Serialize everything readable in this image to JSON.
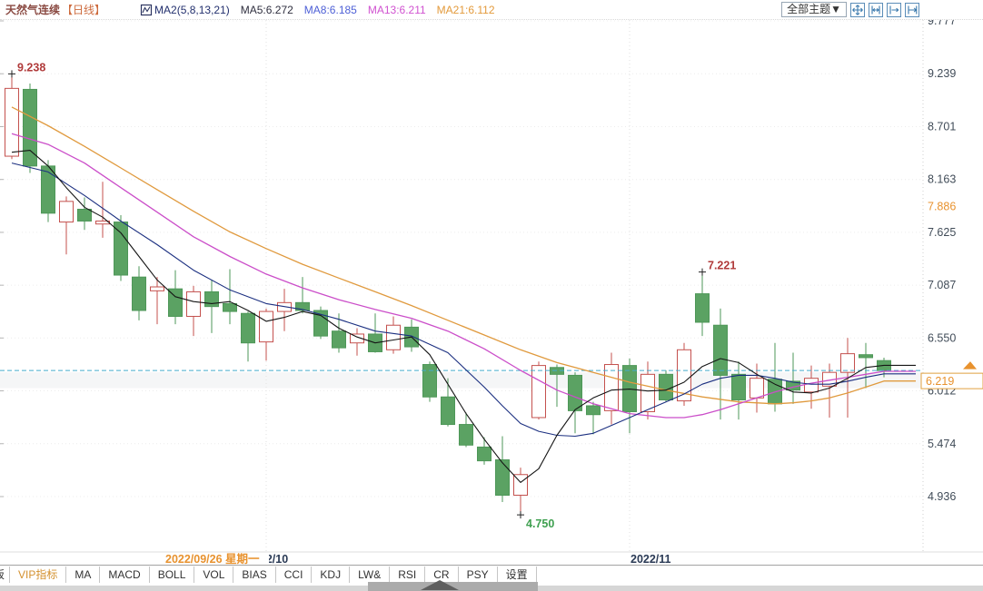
{
  "header": {
    "symbol": "天然气连续",
    "period": "【日线】",
    "ma_settings": "MA2(5,8,13,21)",
    "ma_values": [
      {
        "label": "MA5:6.272",
        "color": "#2e2e3e"
      },
      {
        "label": "MA8:6.185",
        "color": "#4d5fd6"
      },
      {
        "label": "MA13:6.211",
        "color": "#d052d0"
      },
      {
        "label": "MA21:6.112",
        "color": "#e39a3b"
      }
    ],
    "theme_dropdown_label": "全部主题▼",
    "icon_buttons": [
      "move-crosshair-icon",
      "compress-horizontal-icon",
      "expand-right-icon",
      "pan-right-icon"
    ]
  },
  "chart_data": {
    "type": "candlestick",
    "title": "天然气连续 日线",
    "ylim": [
      4.936,
      9.777
    ],
    "grid": true,
    "colors": {
      "down_fill": "#5ba263",
      "down_stroke": "#4e9758",
      "up_stroke": "#c4514e",
      "up_fill": "#ffffff",
      "ma5": "#151515",
      "ma8": "#1b2f80",
      "ma13": "#cb4ec9",
      "ma21": "#e09a3e",
      "price_line": "#44aacb",
      "accent_orange": "#e8922e",
      "axis_text": "#414c58",
      "annotation_red": "#b03a3a",
      "annotation_green": "#3fa050",
      "date_navy": "#2a3a55"
    },
    "y_axis_labels": [
      {
        "text": "9.777",
        "price": 9.777
      },
      {
        "text": "9.239",
        "price": 9.239
      },
      {
        "text": "8.701",
        "price": 8.701
      },
      {
        "text": "8.163",
        "price": 8.163
      },
      {
        "text": "7.625",
        "price": 7.625
      },
      {
        "text": "7.087",
        "price": 7.087
      },
      {
        "text": "6.550",
        "price": 6.55
      },
      {
        "text": "6.012",
        "price": 6.012
      },
      {
        "text": "5.474",
        "price": 5.474
      },
      {
        "text": "4.936",
        "price": 4.936
      }
    ],
    "special_label": {
      "text": "7.886",
      "price": 7.886
    },
    "current_price": {
      "text": "6.219",
      "price": 6.219
    },
    "x_axis": {
      "months": [
        {
          "text": "2022/10",
          "line_i": 14,
          "label_i": 13.0
        },
        {
          "text": "2022/11",
          "line_i": 34,
          "label_i": 34.1
        }
      ],
      "tooltip": {
        "text": "2022/09/26 星期一",
        "i": 8.25
      }
    },
    "candles": [
      [
        8.4,
        9.238,
        8.37,
        9.09,
        "r"
      ],
      [
        9.08,
        9.14,
        8.23,
        8.3,
        "g"
      ],
      [
        8.3,
        8.36,
        7.73,
        7.82,
        "g"
      ],
      [
        7.73,
        7.99,
        7.4,
        7.94,
        "r"
      ],
      [
        7.86,
        7.98,
        7.65,
        7.74,
        "g"
      ],
      [
        7.71,
        8.14,
        7.57,
        7.74,
        "r"
      ],
      [
        7.73,
        7.8,
        7.13,
        7.19,
        "g"
      ],
      [
        7.17,
        7.28,
        6.73,
        6.83,
        "g"
      ],
      [
        7.03,
        7.17,
        6.69,
        7.07,
        "r"
      ],
      [
        7.05,
        7.24,
        6.69,
        6.77,
        "g"
      ],
      [
        6.77,
        7.08,
        6.57,
        7.02,
        "r"
      ],
      [
        7.02,
        7.14,
        6.6,
        6.87,
        "g"
      ],
      [
        6.9,
        7.25,
        6.69,
        6.82,
        "g"
      ],
      [
        6.8,
        6.82,
        6.31,
        6.5,
        "g"
      ],
      [
        6.51,
        6.85,
        6.32,
        6.82,
        "r"
      ],
      [
        6.82,
        7.05,
        6.62,
        6.91,
        "r"
      ],
      [
        6.91,
        7.17,
        6.8,
        6.83,
        "g"
      ],
      [
        6.83,
        6.87,
        6.54,
        6.57,
        "g"
      ],
      [
        6.62,
        6.8,
        6.4,
        6.45,
        "g"
      ],
      [
        6.5,
        6.65,
        6.37,
        6.59,
        "r"
      ],
      [
        6.59,
        6.8,
        6.4,
        6.41,
        "g"
      ],
      [
        6.43,
        6.77,
        6.39,
        6.68,
        "r"
      ],
      [
        6.66,
        6.74,
        6.41,
        6.46,
        "g"
      ],
      [
        6.28,
        6.31,
        5.9,
        5.95,
        "g"
      ],
      [
        5.95,
        6.14,
        5.65,
        5.67,
        "g"
      ],
      [
        5.67,
        5.79,
        5.44,
        5.46,
        "g"
      ],
      [
        5.44,
        5.54,
        5.26,
        5.3,
        "g"
      ],
      [
        5.31,
        5.55,
        4.88,
        4.95,
        "g"
      ],
      [
        4.95,
        5.23,
        4.75,
        5.16,
        "r"
      ],
      [
        5.74,
        6.31,
        5.72,
        6.27,
        "r"
      ],
      [
        6.25,
        6.28,
        5.85,
        6.18,
        "g"
      ],
      [
        6.17,
        6.2,
        5.58,
        5.81,
        "g"
      ],
      [
        5.86,
        5.9,
        5.57,
        5.77,
        "g"
      ],
      [
        5.81,
        6.4,
        5.67,
        6.28,
        "r"
      ],
      [
        6.27,
        6.34,
        5.58,
        5.8,
        "g"
      ],
      [
        5.8,
        6.31,
        5.72,
        6.18,
        "r"
      ],
      [
        6.18,
        6.22,
        5.9,
        5.92,
        "g"
      ],
      [
        5.91,
        6.5,
        5.86,
        6.43,
        "r"
      ],
      [
        7.0,
        7.221,
        6.57,
        6.71,
        "g"
      ],
      [
        6.68,
        6.85,
        5.72,
        6.17,
        "g"
      ],
      [
        6.18,
        6.31,
        5.72,
        5.92,
        "g"
      ],
      [
        5.94,
        6.29,
        5.79,
        6.14,
        "r"
      ],
      [
        6.13,
        6.5,
        5.8,
        5.88,
        "g"
      ],
      [
        6.11,
        6.4,
        5.88,
        6.02,
        "g"
      ],
      [
        6.0,
        6.27,
        5.83,
        6.14,
        "r"
      ],
      [
        6.06,
        6.29,
        5.74,
        6.2,
        "r"
      ],
      [
        6.2,
        6.55,
        5.74,
        6.39,
        "r"
      ],
      [
        6.38,
        6.5,
        6.04,
        6.35,
        "g"
      ],
      [
        6.32,
        6.35,
        6.15,
        6.219,
        "g"
      ]
    ],
    "ma_lines": [
      {
        "name": "MA21",
        "color": "#e09a3e",
        "width": 1.3,
        "points": [
          [
            0,
            8.9
          ],
          [
            2,
            8.71
          ],
          [
            4,
            8.5
          ],
          [
            6,
            8.28
          ],
          [
            8,
            8.06
          ],
          [
            10,
            7.84
          ],
          [
            12,
            7.63
          ],
          [
            14,
            7.46
          ],
          [
            16,
            7.3
          ],
          [
            18,
            7.16
          ],
          [
            20,
            7.02
          ],
          [
            22,
            6.88
          ],
          [
            24,
            6.73
          ],
          [
            26,
            6.58
          ],
          [
            28,
            6.43
          ],
          [
            30,
            6.3
          ],
          [
            32,
            6.2
          ],
          [
            34,
            6.1
          ],
          [
            36,
            6.02
          ],
          [
            38,
            5.95
          ],
          [
            40,
            5.9
          ],
          [
            42,
            5.88
          ],
          [
            43,
            5.89
          ],
          [
            44,
            5.91
          ],
          [
            45,
            5.94
          ],
          [
            46,
            5.99
          ],
          [
            47,
            6.05
          ],
          [
            48,
            6.112
          ]
        ]
      },
      {
        "name": "MA13",
        "color": "#cb4ec9",
        "width": 1.3,
        "points": [
          [
            0,
            8.63
          ],
          [
            2,
            8.52
          ],
          [
            4,
            8.33
          ],
          [
            6,
            8.08
          ],
          [
            8,
            7.83
          ],
          [
            10,
            7.58
          ],
          [
            12,
            7.38
          ],
          [
            14,
            7.2
          ],
          [
            16,
            7.06
          ],
          [
            18,
            6.94
          ],
          [
            20,
            6.84
          ],
          [
            22,
            6.75
          ],
          [
            24,
            6.62
          ],
          [
            26,
            6.44
          ],
          [
            28,
            6.22
          ],
          [
            30,
            6.02
          ],
          [
            32,
            5.88
          ],
          [
            34,
            5.78
          ],
          [
            36,
            5.74
          ],
          [
            37,
            5.74
          ],
          [
            38,
            5.77
          ],
          [
            39,
            5.82
          ],
          [
            40,
            5.88
          ],
          [
            41,
            5.94
          ],
          [
            42,
            6.0
          ],
          [
            43,
            6.05
          ],
          [
            44,
            6.09
          ],
          [
            45,
            6.12
          ],
          [
            46,
            6.15
          ],
          [
            47,
            6.18
          ],
          [
            48,
            6.211
          ]
        ]
      },
      {
        "name": "MA8",
        "color": "#1b2f80",
        "width": 1.1,
        "points": [
          [
            0,
            8.33
          ],
          [
            2,
            8.24
          ],
          [
            4,
            8.0
          ],
          [
            6,
            7.74
          ],
          [
            8,
            7.5
          ],
          [
            10,
            7.24
          ],
          [
            12,
            7.04
          ],
          [
            14,
            6.9
          ],
          [
            16,
            6.84
          ],
          [
            18,
            6.74
          ],
          [
            20,
            6.62
          ],
          [
            22,
            6.57
          ],
          [
            24,
            6.4
          ],
          [
            26,
            6.05
          ],
          [
            27,
            5.86
          ],
          [
            28,
            5.68
          ],
          [
            29,
            5.6
          ],
          [
            30,
            5.56
          ],
          [
            31,
            5.55
          ],
          [
            32,
            5.58
          ],
          [
            33,
            5.66
          ],
          [
            34,
            5.74
          ],
          [
            35,
            5.82
          ],
          [
            36,
            5.9
          ],
          [
            37,
            5.98
          ],
          [
            38,
            6.08
          ],
          [
            39,
            6.14
          ],
          [
            40,
            6.17
          ],
          [
            41,
            6.17
          ],
          [
            42,
            6.14
          ],
          [
            43,
            6.1
          ],
          [
            44,
            6.08
          ],
          [
            45,
            6.08
          ],
          [
            46,
            6.11
          ],
          [
            47,
            6.15
          ],
          [
            48,
            6.185
          ]
        ]
      },
      {
        "name": "MA5",
        "color": "#151515",
        "width": 1.1,
        "points": [
          [
            0,
            8.44
          ],
          [
            1,
            8.46
          ],
          [
            2,
            8.3
          ],
          [
            3,
            8.08
          ],
          [
            4,
            7.88
          ],
          [
            5,
            7.78
          ],
          [
            6,
            7.62
          ],
          [
            7,
            7.38
          ],
          [
            8,
            7.14
          ],
          [
            9,
            6.97
          ],
          [
            10,
            6.92
          ],
          [
            11,
            6.9
          ],
          [
            12,
            6.92
          ],
          [
            13,
            6.83
          ],
          [
            14,
            6.72
          ],
          [
            15,
            6.76
          ],
          [
            16,
            6.82
          ],
          [
            17,
            6.78
          ],
          [
            18,
            6.65
          ],
          [
            19,
            6.56
          ],
          [
            20,
            6.5
          ],
          [
            21,
            6.53
          ],
          [
            22,
            6.56
          ],
          [
            23,
            6.38
          ],
          [
            24,
            6.08
          ],
          [
            25,
            5.78
          ],
          [
            26,
            5.52
          ],
          [
            27,
            5.28
          ],
          [
            28,
            5.08
          ],
          [
            29,
            5.22
          ],
          [
            30,
            5.56
          ],
          [
            31,
            5.82
          ],
          [
            32,
            5.94
          ],
          [
            33,
            6.02
          ],
          [
            34,
            6.03
          ],
          [
            35,
            6.01
          ],
          [
            36,
            6.02
          ],
          [
            37,
            6.1
          ],
          [
            38,
            6.26
          ],
          [
            39,
            6.34
          ],
          [
            40,
            6.3
          ],
          [
            41,
            6.18
          ],
          [
            42,
            6.08
          ],
          [
            43,
            6.0
          ],
          [
            44,
            5.99
          ],
          [
            45,
            6.04
          ],
          [
            46,
            6.14
          ],
          [
            47,
            6.25
          ],
          [
            48,
            6.272
          ]
        ]
      }
    ],
    "annotations": [
      {
        "text": "9.238",
        "i": 0,
        "price": 9.238,
        "side": "high",
        "color": "#b03a3a"
      },
      {
        "text": "7.221",
        "i": 38,
        "price": 7.221,
        "side": "high",
        "color": "#b03a3a"
      },
      {
        "text": "4.750",
        "i": 28,
        "price": 4.75,
        "side": "low",
        "color": "#3fa050"
      }
    ]
  },
  "footer": {
    "tabs": [
      "板",
      "VIP指标",
      "MA",
      "MACD",
      "BOLL",
      "VOL",
      "BIAS",
      "CCI",
      "KDJ",
      "LW&",
      "RSI",
      "CR",
      "PSY",
      "设置"
    ],
    "active_tab": "VIP指标"
  }
}
